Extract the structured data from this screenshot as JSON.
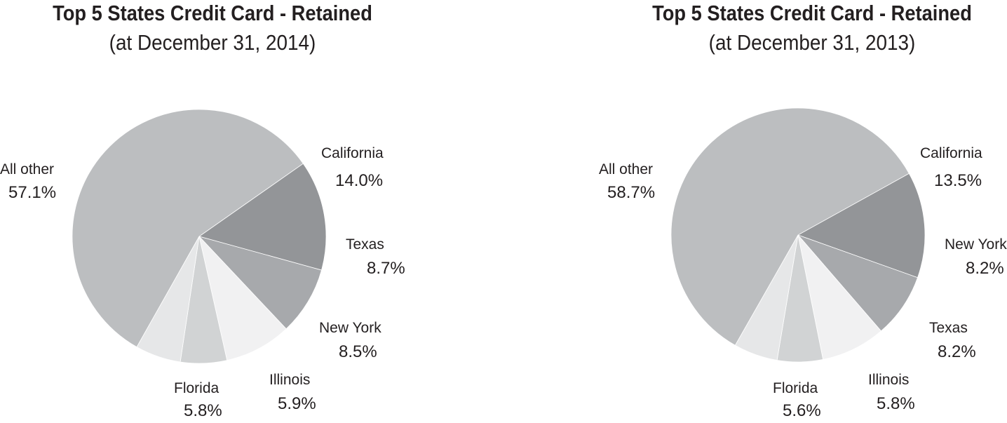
{
  "chart_data": [
    {
      "type": "pie",
      "title": "Top 5 States Credit Card - Retained",
      "subtitle": "(at December 31, 2014)",
      "slices": [
        {
          "label": "California",
          "value": 14.0,
          "display": "14.0%",
          "color": "#939598"
        },
        {
          "label": "Texas",
          "value": 8.7,
          "display": "8.7%",
          "color": "#a7a9ac"
        },
        {
          "label": "New York",
          "value": 8.5,
          "display": "8.5%",
          "color": "#f1f1f2"
        },
        {
          "label": "Illinois",
          "value": 5.9,
          "display": "5.9%",
          "color": "#d1d3d4"
        },
        {
          "label": "Florida",
          "value": 5.8,
          "display": "5.8%",
          "color": "#e6e7e8"
        },
        {
          "label": "All other",
          "value": 57.1,
          "display": "57.1%",
          "color": "#bcbec0"
        }
      ]
    },
    {
      "type": "pie",
      "title": "Top 5 States Credit Card - Retained",
      "subtitle": "(at December 31, 2013)",
      "slices": [
        {
          "label": "California",
          "value": 13.5,
          "display": "13.5%",
          "color": "#939598"
        },
        {
          "label": "New York",
          "value": 8.2,
          "display": "8.2%",
          "color": "#a7a9ac"
        },
        {
          "label": "Texas",
          "value": 8.2,
          "display": "8.2%",
          "color": "#f1f1f2"
        },
        {
          "label": "Illinois",
          "value": 5.8,
          "display": "5.8%",
          "color": "#d1d3d4"
        },
        {
          "label": "Florida",
          "value": 5.6,
          "display": "5.6%",
          "color": "#e6e7e8"
        },
        {
          "label": "All other",
          "value": 58.7,
          "display": "58.7%",
          "color": "#bcbec0"
        }
      ]
    }
  ]
}
